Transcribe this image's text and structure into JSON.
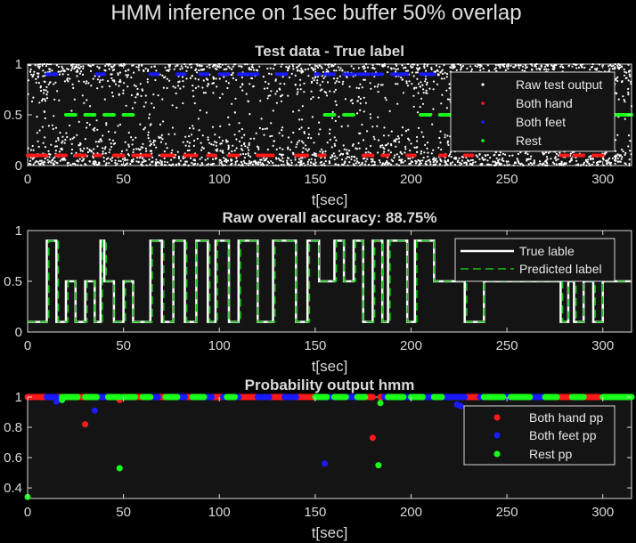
{
  "figure_title": "HMM inference on 1sec buffer 50% overlap",
  "colors": {
    "background": "#000000",
    "axes_bg": "#141414",
    "axis": "#d9d9d9",
    "raw": "#ffffff",
    "both_hand": "#ff1a1a",
    "both_feet": "#1a1aff",
    "rest": "#1aff1a",
    "true_line": "#ffffff",
    "pred_line": "#18c418"
  },
  "chart_data": [
    {
      "type": "scatter",
      "title": "Test data - True label",
      "xlabel": "t[sec]",
      "ylabel": "",
      "xlim": [
        0,
        315
      ],
      "ylim": [
        0,
        1
      ],
      "xticks": [
        "0",
        "50",
        "100",
        "150",
        "200",
        "250",
        "300"
      ],
      "yticks": [
        "0",
        "0.5",
        "1"
      ],
      "legend_position": "top-right",
      "legend": [
        "Raw test output",
        "Both hand",
        "Both feet",
        "Rest"
      ],
      "segments": [
        {
          "class": "Both hand",
          "y": 0.1,
          "t": [
            [
              0,
              10
            ],
            [
              15,
              20
            ],
            [
              25,
              30
            ],
            [
              35,
              38
            ],
            [
              45,
              50
            ],
            [
              55,
              58
            ],
            [
              60,
              64
            ],
            [
              70,
              76
            ],
            [
              82,
              88
            ],
            [
              94,
              98
            ],
            [
              105,
              110
            ],
            [
              120,
              128
            ],
            [
              140,
              146
            ],
            [
              152,
              155
            ],
            [
              175,
              180
            ],
            [
              185,
              188
            ],
            [
              198,
              202
            ],
            [
              215,
              218
            ],
            [
              228,
              232
            ],
            [
              278,
              282
            ],
            [
              285,
              290
            ],
            [
              295,
              300
            ]
          ]
        },
        {
          "class": "Both feet",
          "y": 0.9,
          "t": [
            [
              10,
              15
            ],
            [
              36,
              40
            ],
            [
              64,
              68
            ],
            [
              78,
              82
            ],
            [
              90,
              94
            ],
            [
              100,
              105
            ],
            [
              110,
              120
            ],
            [
              130,
              135
            ],
            [
              150,
              152
            ],
            [
              155,
              160
            ],
            [
              165,
              170
            ],
            [
              172,
              178
            ],
            [
              180,
              185
            ],
            [
              190,
              198
            ],
            [
              205,
              212
            ]
          ]
        },
        {
          "class": "Rest",
          "y": 0.5,
          "t": [
            [
              20,
              25
            ],
            [
              30,
              35
            ],
            [
              40,
              45
            ],
            [
              50,
              55
            ],
            [
              155,
              160
            ],
            [
              165,
              170
            ],
            [
              205,
              210
            ],
            [
              215,
              222
            ],
            [
              230,
              238
            ],
            [
              282,
              285
            ],
            [
              300,
              315
            ]
          ]
        }
      ],
      "raw_output": {
        "description_only": false,
        "count": 2600
      }
    },
    {
      "type": "line",
      "title": "Raw overall accuracy: 88.75%",
      "xlabel": "t[sec]",
      "ylabel": "",
      "xlim": [
        0,
        315
      ],
      "ylim": [
        0,
        1
      ],
      "xticks": [
        "0",
        "50",
        "100",
        "150",
        "200",
        "250",
        "300"
      ],
      "yticks": [
        "0",
        "0.5",
        "1"
      ],
      "legend_position": "top-right",
      "legend": [
        "True lable",
        "Predicted label"
      ],
      "series": [
        {
          "name": "True lable",
          "x": [
            0,
            10,
            10,
            15,
            15,
            20,
            20,
            25,
            25,
            30,
            30,
            35,
            35,
            38,
            38,
            40,
            40,
            45,
            45,
            50,
            50,
            55,
            55,
            60,
            60,
            64,
            64,
            70,
            70,
            76,
            76,
            82,
            82,
            88,
            88,
            94,
            94,
            98,
            98,
            105,
            105,
            110,
            110,
            120,
            120,
            128,
            128,
            140,
            140,
            146,
            146,
            152,
            152,
            160,
            160,
            165,
            165,
            170,
            170,
            175,
            175,
            180,
            180,
            185,
            185,
            188,
            188,
            198,
            198,
            202,
            202,
            212,
            212,
            228,
            228,
            238,
            238,
            278,
            278,
            282,
            282,
            285,
            285,
            290,
            290,
            295,
            295,
            300,
            300,
            315
          ],
          "y": [
            0.1,
            0.1,
            0.9,
            0.9,
            0.1,
            0.1,
            0.5,
            0.5,
            0.1,
            0.1,
            0.5,
            0.5,
            0.1,
            0.1,
            0.9,
            0.9,
            0.5,
            0.5,
            0.1,
            0.1,
            0.5,
            0.5,
            0.1,
            0.1,
            0.1,
            0.1,
            0.9,
            0.9,
            0.1,
            0.1,
            0.9,
            0.9,
            0.1,
            0.1,
            0.9,
            0.9,
            0.1,
            0.1,
            0.9,
            0.9,
            0.1,
            0.1,
            0.9,
            0.9,
            0.1,
            0.1,
            0.9,
            0.9,
            0.1,
            0.1,
            0.9,
            0.9,
            0.5,
            0.5,
            0.9,
            0.9,
            0.5,
            0.5,
            0.9,
            0.9,
            0.1,
            0.1,
            0.9,
            0.9,
            0.1,
            0.1,
            0.9,
            0.9,
            0.1,
            0.1,
            0.9,
            0.9,
            0.5,
            0.5,
            0.1,
            0.1,
            0.5,
            0.5,
            0.1,
            0.1,
            0.5,
            0.5,
            0.1,
            0.1,
            0.5,
            0.5,
            0.1,
            0.1,
            0.5,
            0.5
          ]
        },
        {
          "name": "Predicted label",
          "x": [
            0,
            11,
            11,
            16,
            16,
            21,
            21,
            25,
            25,
            31,
            31,
            35,
            35,
            39,
            39,
            41,
            41,
            45,
            45,
            51,
            51,
            55,
            55,
            65,
            65,
            71,
            71,
            76,
            76,
            83,
            83,
            88,
            88,
            95,
            95,
            99,
            99,
            105,
            105,
            111,
            111,
            120,
            120,
            129,
            129,
            140,
            140,
            147,
            147,
            152,
            152,
            161,
            161,
            165,
            165,
            171,
            171,
            175,
            175,
            181,
            181,
            185,
            185,
            189,
            189,
            198,
            198,
            203,
            203,
            212,
            212,
            229,
            229,
            238,
            238,
            279,
            279,
            282,
            282,
            286,
            286,
            290,
            290,
            296,
            296,
            300,
            300,
            315
          ],
          "y": [
            0.1,
            0.1,
            0.9,
            0.9,
            0.1,
            0.1,
            0.5,
            0.5,
            0.1,
            0.1,
            0.5,
            0.5,
            0.1,
            0.1,
            0.9,
            0.9,
            0.5,
            0.5,
            0.1,
            0.1,
            0.5,
            0.5,
            0.1,
            0.1,
            0.9,
            0.9,
            0.1,
            0.1,
            0.9,
            0.9,
            0.1,
            0.1,
            0.9,
            0.9,
            0.1,
            0.1,
            0.9,
            0.9,
            0.1,
            0.1,
            0.9,
            0.9,
            0.1,
            0.1,
            0.9,
            0.9,
            0.1,
            0.1,
            0.9,
            0.9,
            0.5,
            0.5,
            0.9,
            0.9,
            0.5,
            0.5,
            0.9,
            0.9,
            0.1,
            0.1,
            0.9,
            0.9,
            0.1,
            0.1,
            0.9,
            0.9,
            0.1,
            0.1,
            0.9,
            0.9,
            0.5,
            0.5,
            0.1,
            0.1,
            0.5,
            0.5,
            0.1,
            0.1,
            0.5,
            0.5,
            0.1,
            0.1,
            0.5,
            0.5,
            0.1,
            0.1,
            0.5,
            0.5
          ]
        }
      ]
    },
    {
      "type": "scatter",
      "title": "Probability output hmm",
      "xlabel": "t[sec]",
      "ylabel": "",
      "xlim": [
        0,
        315
      ],
      "ylim": [
        0.33,
        1
      ],
      "xticks": [
        "0",
        "50",
        "100",
        "150",
        "200",
        "250",
        "300"
      ],
      "yticks": [
        "0.4",
        "0.6",
        "0.8",
        "1"
      ],
      "legend_position": "top-right",
      "legend": [
        "Both hand pp",
        "Both feet pp",
        "Rest pp"
      ],
      "series": [
        {
          "name": "Both hand pp",
          "segments": [
            [
              0,
              12
            ],
            [
              15,
              20
            ],
            [
              24,
              30
            ],
            [
              34,
              40
            ],
            [
              44,
              50
            ],
            [
              54,
              60
            ],
            [
              63,
              72
            ],
            [
              78,
              86
            ],
            [
              95,
              104
            ],
            [
              110,
              122
            ],
            [
              126,
              134
            ],
            [
              140,
              150
            ],
            [
              172,
              180
            ],
            [
              184,
              188
            ],
            [
              210,
              216
            ],
            [
              228,
              236
            ],
            [
              276,
              284
            ],
            [
              290,
              298
            ]
          ],
          "outliers": [
            [
              30,
              0.82
            ],
            [
              48,
              0.98
            ],
            [
              180,
              0.73
            ]
          ]
        },
        {
          "name": "Both feet pp",
          "segments": [
            [
              10,
              15
            ],
            [
              36,
              42
            ],
            [
              64,
              68
            ],
            [
              78,
              82
            ],
            [
              90,
              96
            ],
            [
              102,
              110
            ],
            [
              120,
              126
            ],
            [
              134,
              140
            ],
            [
              150,
              160
            ],
            [
              165,
              172
            ],
            [
              186,
              200
            ],
            [
              205,
              212
            ],
            [
              216,
              228
            ],
            [
              236,
              276
            ],
            [
              300,
              310
            ]
          ],
          "outliers": [
            [
              15,
              0.97
            ],
            [
              35,
              0.91
            ],
            [
              155,
              0.56
            ],
            [
              224,
              0.95
            ],
            [
              226,
              0.94
            ]
          ]
        },
        {
          "name": "Rest pp",
          "segments": [
            [
              18,
              26
            ],
            [
              30,
              36
            ],
            [
              42,
              48
            ],
            [
              50,
              56
            ],
            [
              60,
              64
            ],
            [
              72,
              78
            ],
            [
              86,
              92
            ],
            [
              104,
              108
            ],
            [
              150,
              156
            ],
            [
              160,
              166
            ],
            [
              172,
              176
            ],
            [
              188,
              196
            ],
            [
              200,
              206
            ],
            [
              212,
              216
            ],
            [
              238,
              248
            ],
            [
              252,
              262
            ],
            [
              270,
              276
            ],
            [
              284,
              290
            ],
            [
              300,
              315
            ]
          ],
          "outliers": [
            [
              0,
              0.34
            ],
            [
              48,
              0.53
            ],
            [
              183,
              0.55
            ],
            [
              184,
              0.96
            ],
            [
              18,
              0.98
            ]
          ]
        }
      ]
    }
  ]
}
